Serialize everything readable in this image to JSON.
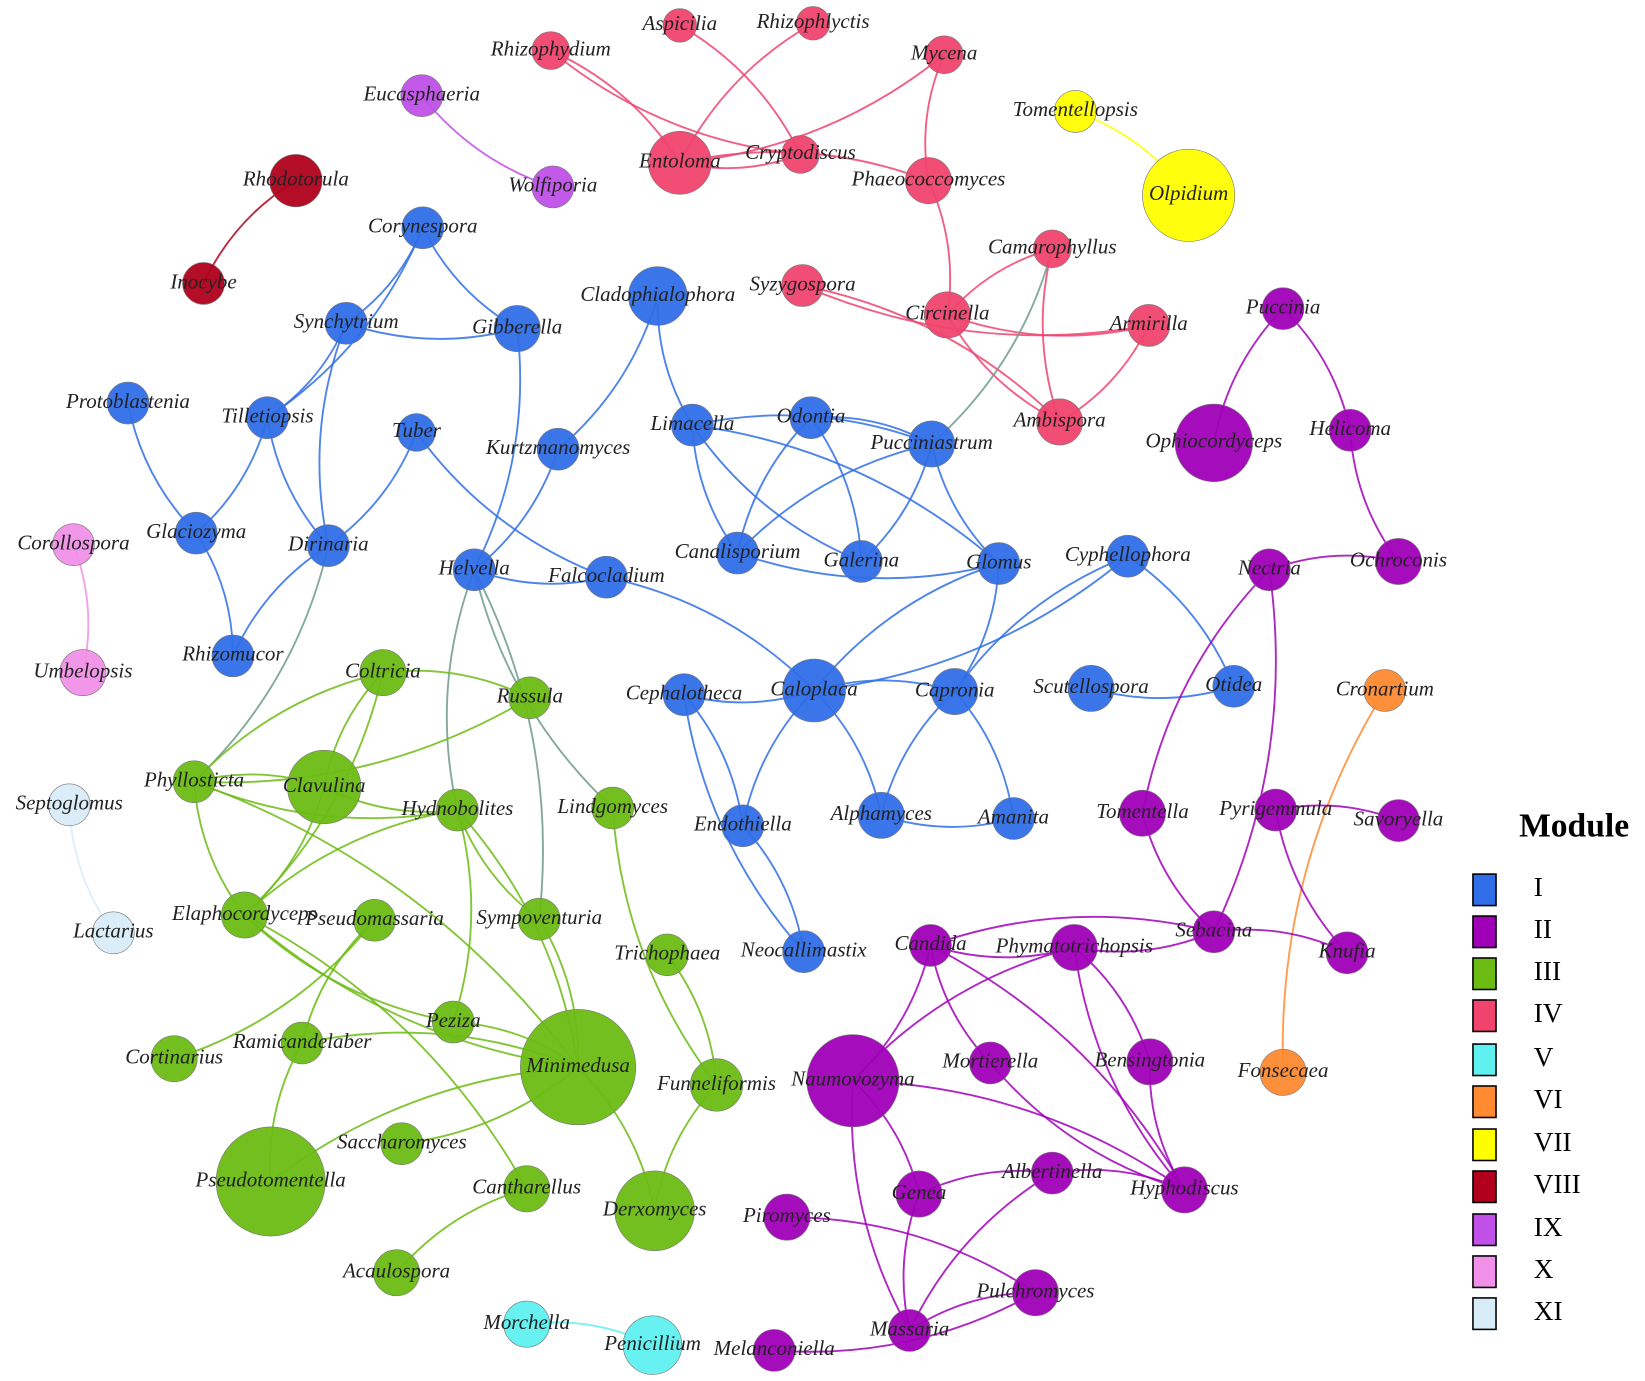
{
  "nodes": [
    {
      "label": "Aspicilia"
    },
    {
      "label": "Rhizophlyctis"
    },
    {
      "label": "Rhizophydium"
    },
    {
      "label": "Mycena"
    },
    {
      "label": "Entoloma"
    },
    {
      "label": "Cryptodiscus"
    },
    {
      "label": "Phaeococcomyces"
    },
    {
      "label": "Camarophyllus"
    },
    {
      "label": "Syzygospora"
    },
    {
      "label": "Circinella"
    },
    {
      "label": "Armirilla"
    },
    {
      "label": "Ambispora"
    },
    {
      "label": "Eucasphaeria"
    },
    {
      "label": "Wolfiporia"
    },
    {
      "label": "Tomentellopsis"
    },
    {
      "label": "Olpidium"
    },
    {
      "label": "Rhodotorula"
    },
    {
      "label": "Inocybe"
    },
    {
      "label": "Corynespora"
    },
    {
      "label": "Synchytrium"
    },
    {
      "label": "Gibberella"
    },
    {
      "label": "Cladophialophora"
    },
    {
      "label": "Protoblastenia"
    },
    {
      "label": "Tilletiopsis"
    },
    {
      "label": "Tuber"
    },
    {
      "label": "Kurtzmanomyces"
    },
    {
      "label": "Limacella"
    },
    {
      "label": "Odontia"
    },
    {
      "label": "Pucciniastrum"
    },
    {
      "label": "Glaciozyma"
    },
    {
      "label": "Dirinaria"
    },
    {
      "label": "Helvella"
    },
    {
      "label": "Falcocladium"
    },
    {
      "label": "Canalisporium"
    },
    {
      "label": "Galerina"
    },
    {
      "label": "Glomus"
    },
    {
      "label": "Cyphellophora"
    },
    {
      "label": "Rhizomucor"
    },
    {
      "label": "Cephalotheca"
    },
    {
      "label": "Caloplaca"
    },
    {
      "label": "Capronia"
    },
    {
      "label": "Scutellospora"
    },
    {
      "label": "Otidea"
    },
    {
      "label": "Alphamyces"
    },
    {
      "label": "Amanita"
    },
    {
      "label": "Endothiella"
    },
    {
      "label": "Neocallimastix"
    },
    {
      "label": "Corollospora"
    },
    {
      "label": "Umbelopsis"
    },
    {
      "label": "Septoglomus"
    },
    {
      "label": "Lactarius"
    },
    {
      "label": "Coltricia"
    },
    {
      "label": "Russula"
    },
    {
      "label": "Phyllosticta"
    },
    {
      "label": "Clavulina"
    },
    {
      "label": "Hydnobolites"
    },
    {
      "label": "Lindgomyces"
    },
    {
      "label": "Elaphocordyceps"
    },
    {
      "label": "Pseudomassaria"
    },
    {
      "label": "Sympoventuria"
    },
    {
      "label": "Trichophaea"
    },
    {
      "label": "Peziza"
    },
    {
      "label": "Cortinarius"
    },
    {
      "label": "Ramicandelaber"
    },
    {
      "label": "Minimedusa"
    },
    {
      "label": "Funneliformis"
    },
    {
      "label": "Saccharomyces"
    },
    {
      "label": "Pseudotomentella"
    },
    {
      "label": "Cantharellus"
    },
    {
      "label": "Derxomyces"
    },
    {
      "label": "Acaulospora"
    },
    {
      "label": "Morchella"
    },
    {
      "label": "Penicillium"
    },
    {
      "label": "Cronartium"
    },
    {
      "label": "Fonsecaea"
    },
    {
      "label": "Puccinia"
    },
    {
      "label": "Ophiocordyceps"
    },
    {
      "label": "Helicoma"
    },
    {
      "label": "Nectria"
    },
    {
      "label": "Ochroconis"
    },
    {
      "label": "Tomentella"
    },
    {
      "label": "Pyrigemmula"
    },
    {
      "label": "Savoryella"
    },
    {
      "label": "Sebacina"
    },
    {
      "label": "Knufia"
    },
    {
      "label": "Candida"
    },
    {
      "label": "Phymatotrichopsis"
    },
    {
      "label": "Naumovozyma"
    },
    {
      "label": "Mortierella"
    },
    {
      "label": "Bensingtonia"
    },
    {
      "label": "Albertinella"
    },
    {
      "label": "Hyphodiscus"
    },
    {
      "label": "Genea"
    },
    {
      "label": "Piromyces"
    },
    {
      "label": "Pulchromyces"
    },
    {
      "label": "Massaria"
    },
    {
      "label": "Melanconiella"
    }
  ],
  "legend": {
    "title": "Module",
    "items": [
      {
        "label": "I",
        "color": "#2f6ee8"
      },
      {
        "label": "II",
        "color": "#a000b8"
      },
      {
        "label": "III",
        "color": "#6cbc14"
      },
      {
        "label": "IV",
        "color": "#f0436e"
      },
      {
        "label": "V",
        "color": "#5ff0f0"
      },
      {
        "label": "VI",
        "color": "#ff8a30"
      },
      {
        "label": "VII",
        "color": "#ffff00"
      },
      {
        "label": "VIII",
        "color": "#b0001c"
      },
      {
        "label": "IX",
        "color": "#c050e8"
      },
      {
        "label": "X",
        "color": "#f090e8"
      },
      {
        "label": "XI",
        "color": "#d8ecf8"
      }
    ]
  }
}
